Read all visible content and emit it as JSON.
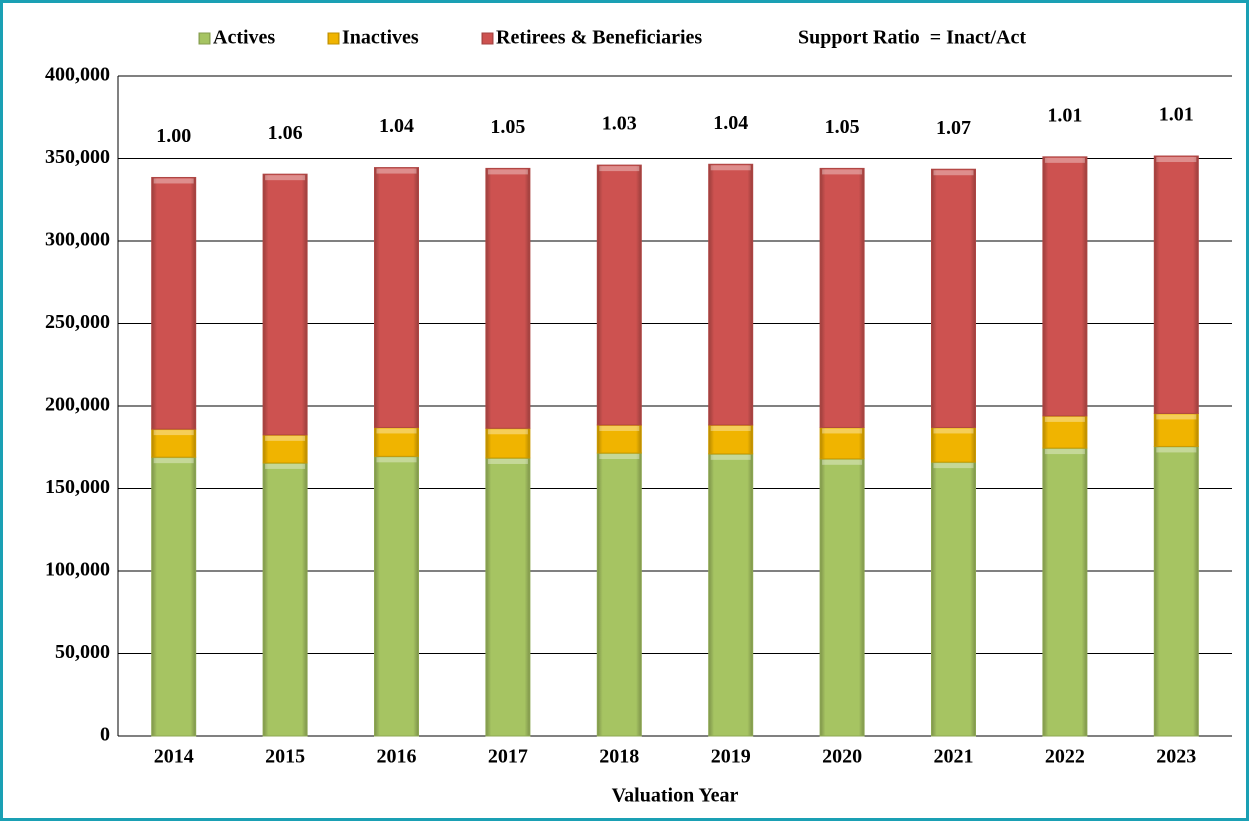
{
  "chart_data": {
    "type": "stacked-bar",
    "x_label": "Valuation Year",
    "categories": [
      "2014",
      "2015",
      "2016",
      "2017",
      "2018",
      "2019",
      "2020",
      "2021",
      "2022",
      "2023"
    ],
    "series": [
      {
        "name": "Actives",
        "color": "#a6c462",
        "values": [
          169000,
          165500,
          169500,
          168500,
          171500,
          171000,
          168000,
          166000,
          174500,
          175500
        ]
      },
      {
        "name": "Inactives",
        "color": "#f0b400",
        "values": [
          17000,
          17000,
          17500,
          18000,
          17000,
          17500,
          19000,
          21000,
          19500,
          20000
        ]
      },
      {
        "name": "Retirees & Beneficiaries",
        "color": "#cd5250",
        "values": [
          152500,
          158000,
          157500,
          157500,
          157500,
          158000,
          157000,
          156500,
          157000,
          156000
        ]
      }
    ],
    "support_ratio": {
      "name": "Support Ratio  = Inact/Act",
      "values": [
        1.0,
        1.06,
        1.04,
        1.05,
        1.03,
        1.04,
        1.05,
        1.07,
        1.01,
        1.01
      ],
      "value_labels": [
        "1.00",
        "1.06",
        "1.04",
        "1.05",
        "1.03",
        "1.04",
        "1.05",
        "1.07",
        "1.01",
        "1.01"
      ]
    },
    "ylim": [
      0,
      400000
    ],
    "yticks": [
      0,
      {
        "value": 50000,
        "label": "50,000"
      },
      {
        "value": 100000,
        "label": "100,000"
      },
      {
        "value": 150000,
        "label": "150,000"
      },
      {
        "value": 200000,
        "label": "200,000"
      },
      {
        "value": 250000,
        "label": "250,000"
      },
      {
        "value": 300000,
        "label": "300,000"
      },
      {
        "value": 350000,
        "label": "350,000"
      },
      {
        "value": 400000,
        "label": "400,000"
      }
    ],
    "grid": true
  }
}
